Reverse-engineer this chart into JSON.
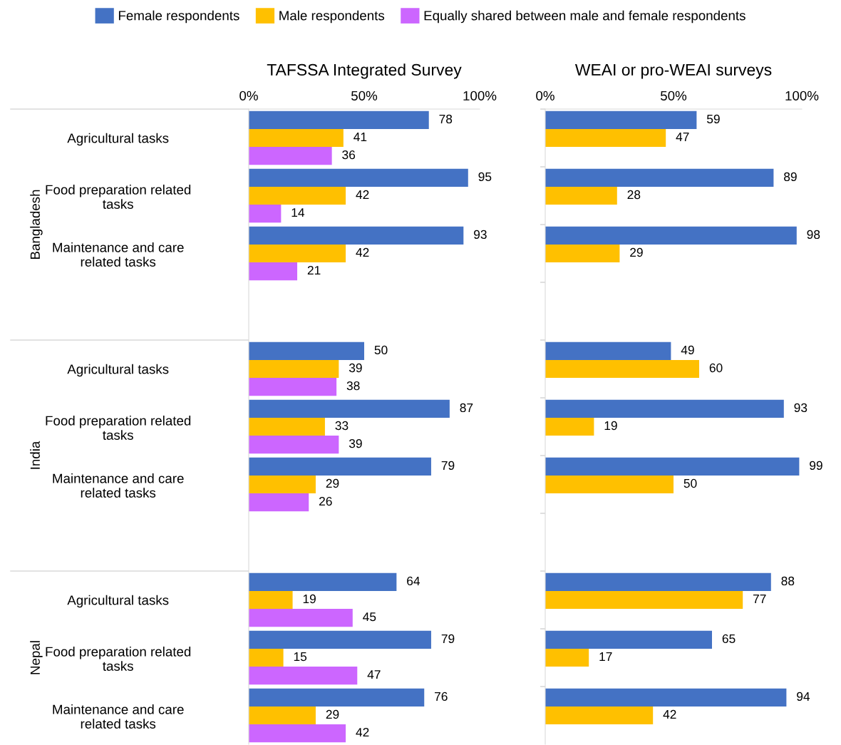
{
  "chart_data": [
    {
      "type": "bar",
      "orientation": "horizontal",
      "title": "TAFSSA Integrated Survey",
      "categories": [
        "Agricultural tasks",
        "Food preparation related\ntasks",
        "Maintenance and care\nrelated tasks",
        null,
        "Agricultural tasks",
        "Food preparation related\ntasks",
        "Maintenance and care\nrelated tasks",
        null,
        "Agricultural tasks",
        "Food preparation related\ntasks",
        "Maintenance and care\nrelated tasks"
      ],
      "series": [
        {
          "name": "Female respondents",
          "color": "#4472c4",
          "values": [
            78,
            95,
            93,
            null,
            50,
            87,
            79,
            null,
            64,
            79,
            76
          ]
        },
        {
          "name": "Male respondents",
          "color": "#ffc000",
          "values": [
            41,
            42,
            42,
            null,
            39,
            33,
            29,
            null,
            19,
            15,
            29
          ]
        },
        {
          "name": "Equally shared between male and female respondents",
          "color": "#cc66ff",
          "values": [
            36,
            14,
            21,
            null,
            38,
            39,
            26,
            null,
            45,
            47,
            42
          ]
        }
      ],
      "xlim": [
        0,
        100
      ],
      "xticks": [
        {
          "value": 0,
          "label": "0%"
        },
        {
          "value": 50,
          "label": "50%"
        },
        {
          "value": 100,
          "label": "100%"
        }
      ],
      "annotations": [
        "Bangladesh",
        "India",
        "Nepal"
      ],
      "data_labels": true,
      "grid": false,
      "legend": "top"
    },
    {
      "type": "bar",
      "orientation": "horizontal",
      "title": "WEAI or pro-WEAI surveys",
      "categories": [
        "Agricultural tasks",
        "Food preparation related\ntasks",
        "Maintenance and care\nrelated tasks",
        null,
        "Agricultural tasks",
        "Food preparation related\ntasks",
        "Maintenance and care\nrelated tasks",
        null,
        "Agricultural tasks",
        "Food preparation related\ntasks",
        "Maintenance and care\nrelated tasks"
      ],
      "series": [
        {
          "name": "Female respondents",
          "color": "#4472c4",
          "values": [
            59,
            89,
            98,
            null,
            49,
            93,
            99,
            null,
            88,
            65,
            94
          ]
        },
        {
          "name": "Male respondents",
          "color": "#ffc000",
          "values": [
            47,
            28,
            29,
            null,
            60,
            19,
            50,
            null,
            77,
            17,
            42
          ]
        }
      ],
      "xlim": [
        0,
        100
      ],
      "xticks": [
        {
          "value": 0,
          "label": "0%"
        },
        {
          "value": 50,
          "label": "50%"
        },
        {
          "value": 100,
          "label": "100%"
        }
      ],
      "tick_labels": "x",
      "data_labels": true,
      "grid": false,
      "legend": "top"
    }
  ]
}
